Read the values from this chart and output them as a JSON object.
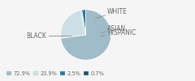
{
  "labels": [
    "BLACK",
    "WHITE",
    "HISPANIC",
    "ASIAN"
  ],
  "values": [
    72.9,
    23.9,
    0.7,
    2.5
  ],
  "colors": [
    "#a0bcc8",
    "#cde0e8",
    "#1e5570",
    "#2a7a9e"
  ],
  "legend_labels": [
    "72.9%",
    "23.9%",
    "2.5%",
    "0.7%"
  ],
  "legend_colors": [
    "#a0bcc8",
    "#cde0e8",
    "#2a7a9e",
    "#1e5570"
  ],
  "label_color": "#666666",
  "line_color": "#888888",
  "background_color": "#f5f5f5",
  "label_fontsize": 5.5,
  "legend_fontsize": 4.8
}
